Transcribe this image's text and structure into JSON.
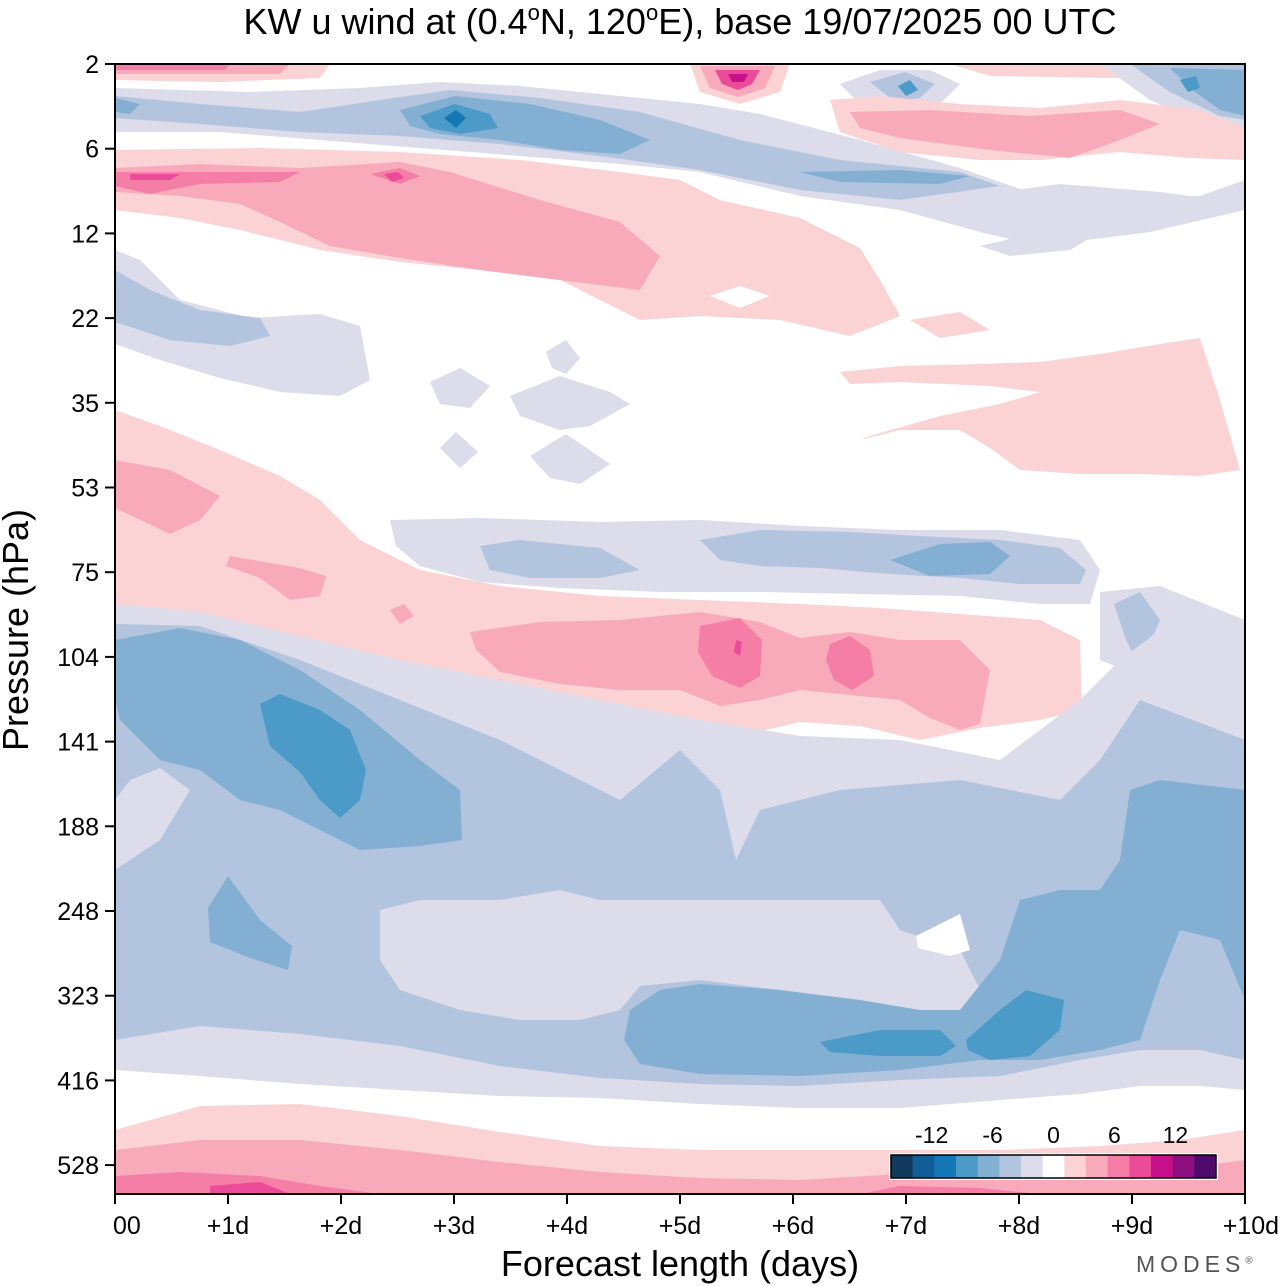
{
  "chart_data": {
    "type": "heatmap",
    "title": {
      "prefix": "KW u wind at (0.4",
      "deg1": "o",
      "mid": "N, 120",
      "deg2": "o",
      "suffix": "E),  base 19/07/2025  00 UTC"
    },
    "xlabel": "Forecast length (days)",
    "ylabel": "Pressure (hPa)",
    "x_ticks": [
      "00",
      "+1d",
      "+2d",
      "+3d",
      "+4d",
      "+5d",
      "+6d",
      "+7d",
      "+8d",
      "+9d",
      "+10d"
    ],
    "y_ticks": [
      "2",
      "6",
      "12",
      "22",
      "35",
      "53",
      "75",
      "104",
      "141",
      "188",
      "248",
      "323",
      "416",
      "528"
    ],
    "xlim_days": [
      0,
      10
    ],
    "colorbar": {
      "labels": [
        "-12",
        "-6",
        "0",
        "6",
        "12"
      ],
      "label_values": [
        -12,
        -6,
        0,
        6,
        12
      ],
      "levels": [
        -16,
        -14,
        -12,
        -10,
        -8,
        -6,
        -4,
        -2,
        2,
        4,
        6,
        8,
        10,
        12,
        14,
        16
      ],
      "colors": [
        "#123a5c",
        "#0f5e96",
        "#1478b6",
        "#4b9ac7",
        "#83afd2",
        "#b3c4df",
        "#dcdcea",
        "#ffffff",
        "#fbd3d4",
        "#f8aabb",
        "#f57ea6",
        "#ec4b99",
        "#c8108a",
        "#8e0f7f",
        "#4e0a6b"
      ]
    },
    "contour_bands": [
      {
        "name": "weak-negative",
        "range": [
          -4,
          -2
        ],
        "color": "#dcdcea"
      },
      {
        "name": "moderate-negative",
        "range": [
          -6,
          -4
        ],
        "color": "#b3c4df"
      },
      {
        "name": "negative",
        "range": [
          -8,
          -6
        ],
        "color": "#83afd2"
      },
      {
        "name": "strong-negative",
        "range": [
          -10,
          -8
        ],
        "color": "#4b9ac7"
      },
      {
        "name": "very-strong-negative",
        "range": [
          -12,
          -10
        ],
        "color": "#1478b6"
      },
      {
        "name": "weak-positive",
        "range": [
          2,
          4
        ],
        "color": "#fbd3d4"
      },
      {
        "name": "moderate-positive",
        "range": [
          4,
          6
        ],
        "color": "#f8aabb"
      },
      {
        "name": "positive",
        "range": [
          6,
          8
        ],
        "color": "#f57ea6"
      },
      {
        "name": "strong-positive",
        "range": [
          8,
          10
        ],
        "color": "#ec4b99"
      },
      {
        "name": "very-strong-positive",
        "range": [
          10,
          12
        ],
        "color": "#c8108a"
      }
    ]
  },
  "branding": {
    "text": "MODES",
    "mark": "®"
  }
}
